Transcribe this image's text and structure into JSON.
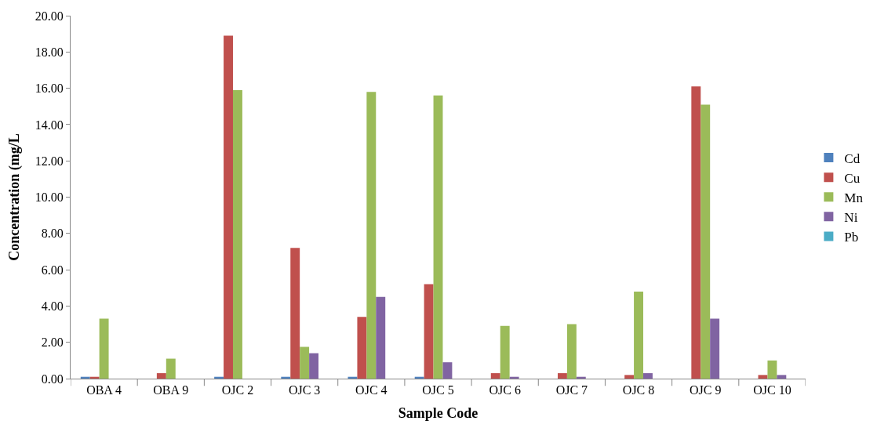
{
  "chart_data": {
    "type": "bar",
    "xlabel": "Sample Code",
    "ylabel": "Concentration (mg/L",
    "categories": [
      "OBA 4",
      "OBA 9",
      "OJC 2",
      "OJC 3",
      "OJC 4",
      "OJC 5",
      "OJC 6",
      "OJC 7",
      "OJC 8",
      "OJC 9",
      "OJC 10"
    ],
    "series": [
      {
        "name": "Cd",
        "color": "#4f81bd",
        "values": [
          0.1,
          0,
          0.1,
          0.1,
          0.1,
          0.1,
          0,
          0,
          0,
          0,
          0
        ]
      },
      {
        "name": "Cu",
        "color": "#c0504d",
        "values": [
          0.1,
          0.3,
          18.9,
          7.2,
          3.4,
          5.2,
          0.3,
          0.3,
          0.2,
          16.1,
          0.2
        ]
      },
      {
        "name": "Mn",
        "color": "#9bbb59",
        "values": [
          3.3,
          1.1,
          15.9,
          1.75,
          15.8,
          15.6,
          2.9,
          3.0,
          4.8,
          15.1,
          1.0
        ]
      },
      {
        "name": "Ni",
        "color": "#8064a2",
        "values": [
          0,
          0,
          0,
          1.4,
          4.5,
          0.9,
          0.1,
          0.1,
          0.3,
          3.3,
          0.2
        ]
      },
      {
        "name": "Pb",
        "color": "#4bacc6",
        "values": [
          0,
          0,
          0,
          0,
          0,
          0,
          0,
          0,
          0,
          0,
          0
        ]
      }
    ],
    "ylim": [
      0,
      20
    ],
    "yticks": [
      {
        "value": 0,
        "label": "0.00"
      },
      {
        "value": 2,
        "label": "2.00"
      },
      {
        "value": 4,
        "label": "4.00"
      },
      {
        "value": 6,
        "label": "6.00"
      },
      {
        "value": 8,
        "label": "8.00"
      },
      {
        "value": 10,
        "label": "10.00"
      },
      {
        "value": 12,
        "label": "12.00"
      },
      {
        "value": 14,
        "label": "14.00"
      },
      {
        "value": 16,
        "label": "16.00"
      },
      {
        "value": 18,
        "label": "18.00"
      },
      {
        "value": 20,
        "label": "20.00"
      }
    ],
    "legend": "right"
  }
}
